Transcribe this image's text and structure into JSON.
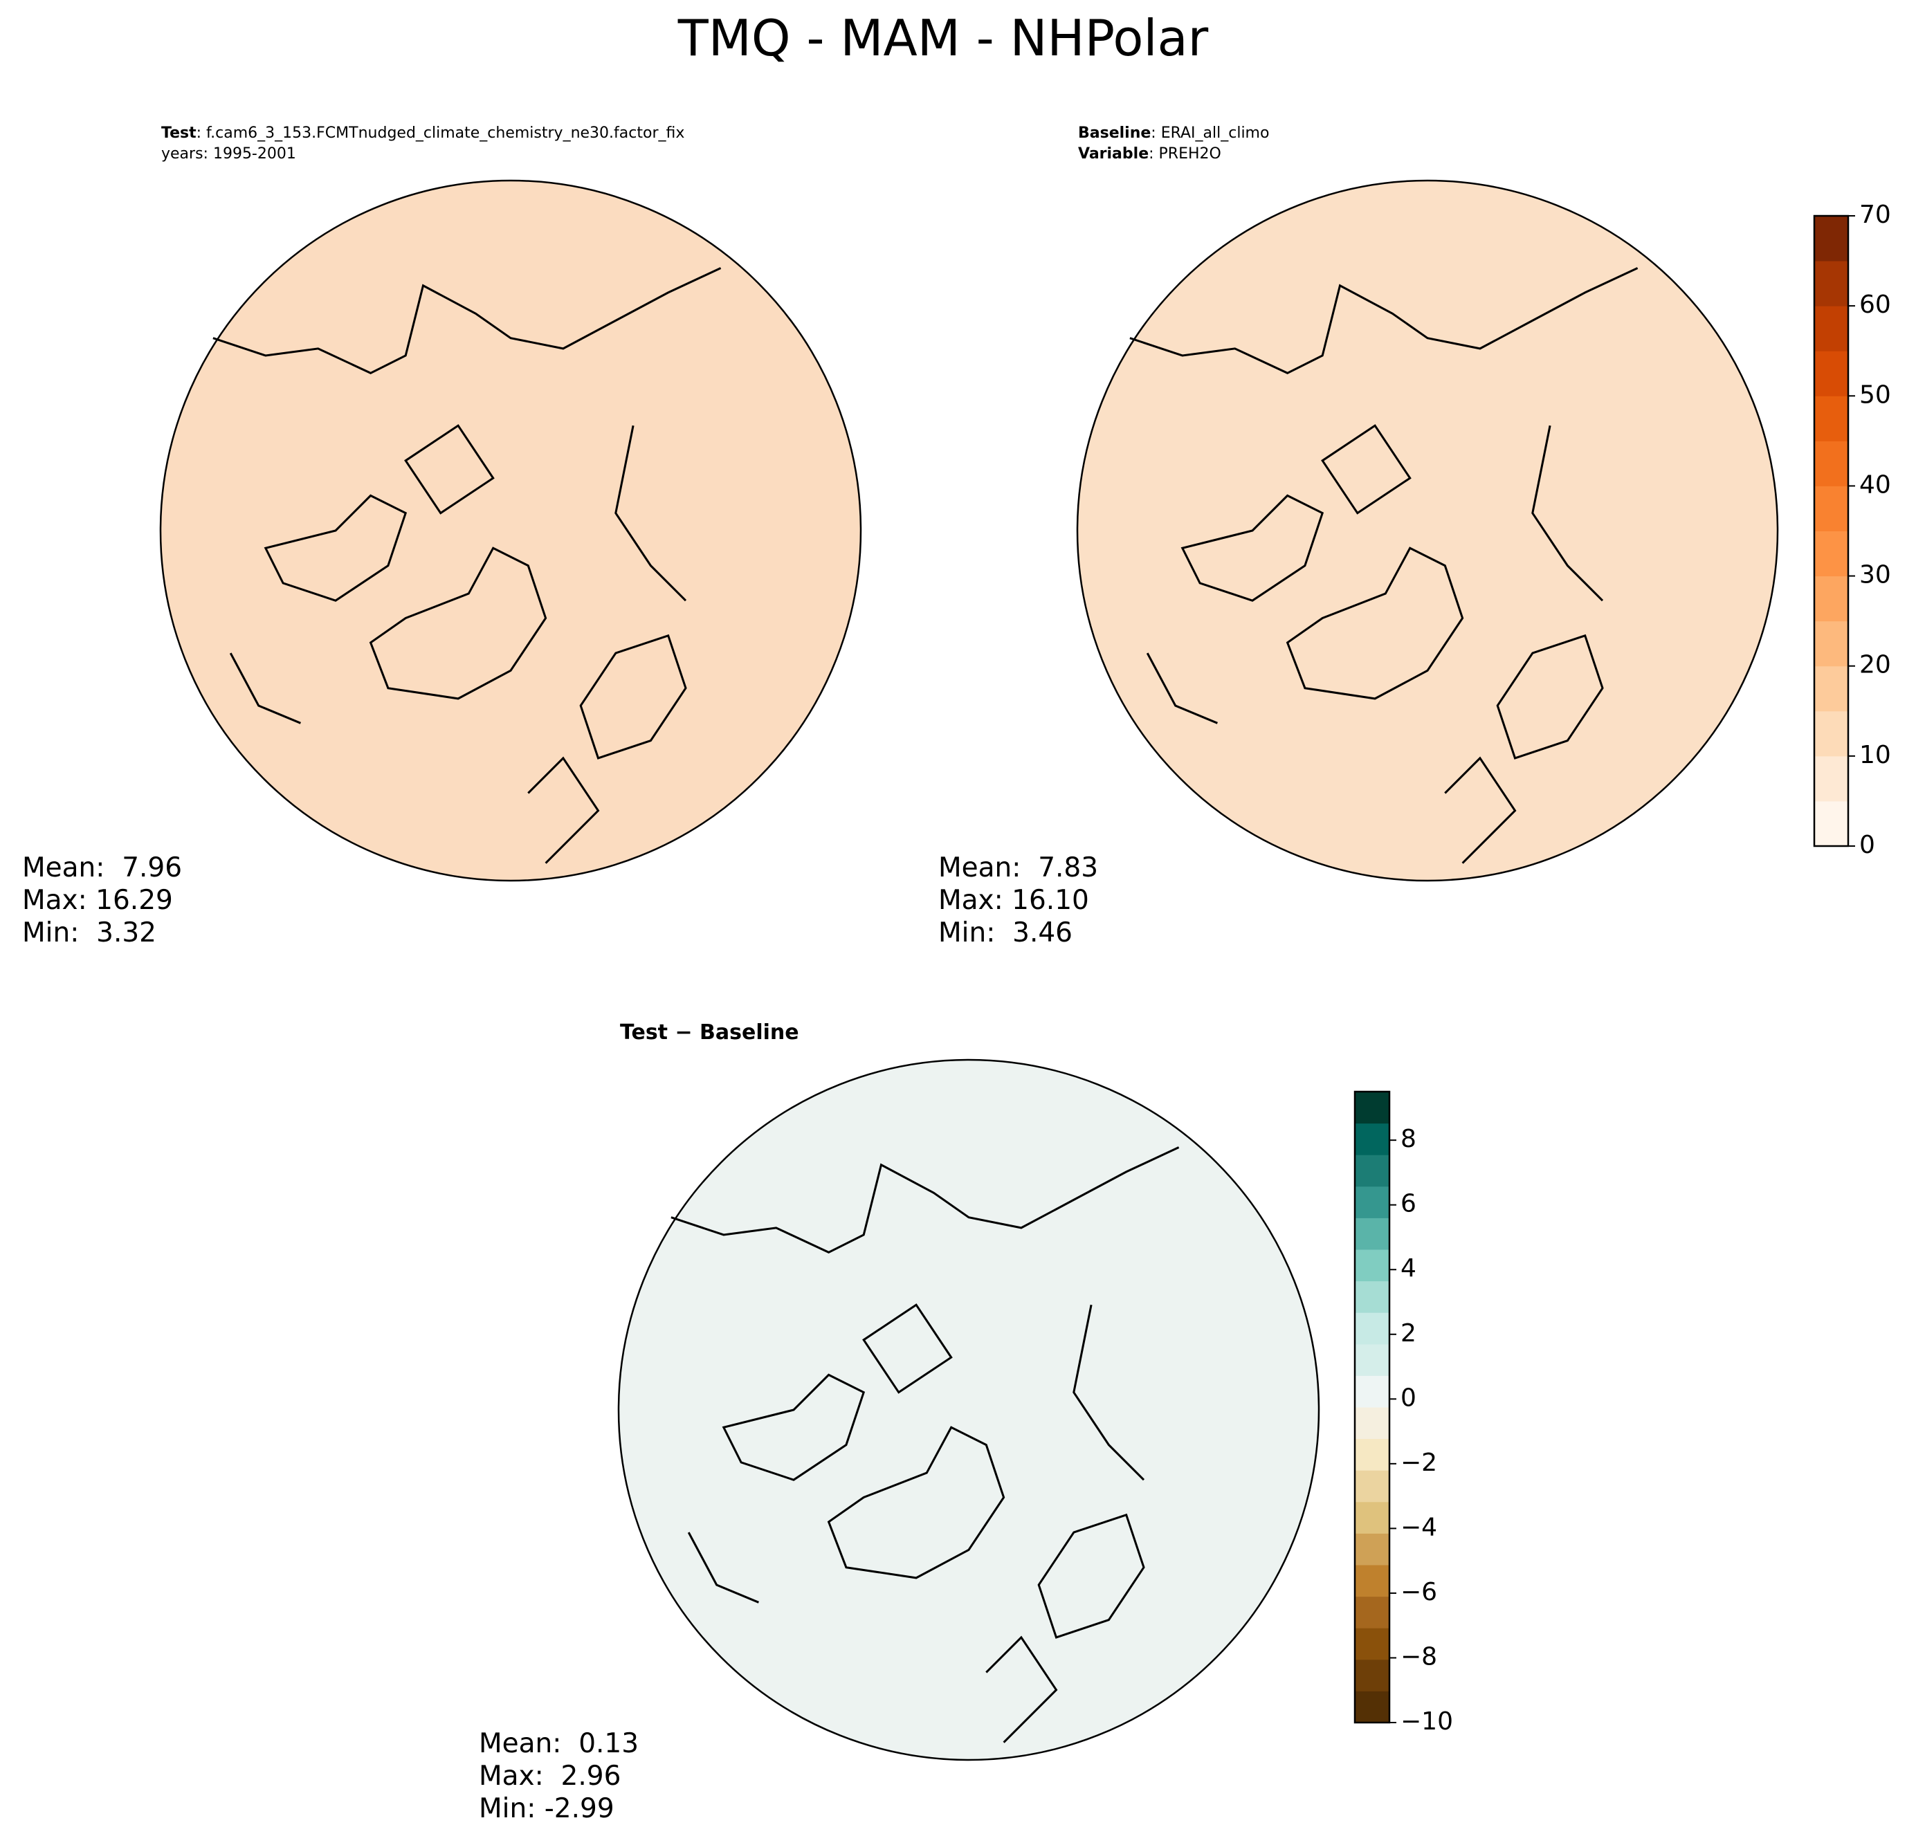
{
  "title": "TMQ - MAM - NHPolar",
  "chart_data": [
    {
      "type": "map",
      "color": "#fbdcc0",
      "header": [
        {
          "label": "Test",
          "text": ": f.cam6_3_153.FCMTnudged_climate_chemistry_ne30.factor_fix"
        },
        {
          "text": "years: 1995-2001"
        }
      ],
      "stats": [
        "Mean:  7.96",
        "Max: 16.29",
        "Min:  3.32"
      ]
    },
    {
      "type": "map",
      "color": "#fbe0c6",
      "header": [
        {
          "label": "Baseline",
          "text": ": ERAI_all_climo"
        },
        {
          "label": "Variable",
          "text": ": PREH2O"
        }
      ],
      "stats": [
        "Mean:  7.83",
        "Max: 16.10",
        "Min:  3.46"
      ],
      "colorbar": {
        "ylim": [
          0,
          70
        ],
        "yticks": [
          0,
          10,
          20,
          30,
          40,
          50,
          60,
          70
        ],
        "colors": [
          "#fff5eb",
          "#fee9d4",
          "#fddbb8",
          "#fdcb9b",
          "#fdb97d",
          "#fda660",
          "#fd9345",
          "#f98230",
          "#f2701d",
          "#e75e0d",
          "#d84c05",
          "#c24002",
          "#a63603",
          "#7f2704"
        ]
      }
    },
    {
      "type": "map",
      "color": "#edf3f1",
      "header": [
        {
          "label": "Test − Baseline"
        }
      ],
      "stats": [
        "Mean:  0.13",
        "Max:  2.96",
        "Min: -2.99"
      ],
      "colorbar": {
        "ylim": [
          -10,
          9.5
        ],
        "yticks": [
          {
            "value": -10,
            "label": "−10"
          },
          {
            "value": -8,
            "label": "−8"
          },
          {
            "value": -6,
            "label": "−6"
          },
          {
            "value": -4,
            "label": "−4"
          },
          {
            "value": -2,
            "label": "−2"
          },
          0,
          2,
          4,
          6,
          8
        ],
        "colors": [
          "#543005",
          "#6e3f08",
          "#8a510b",
          "#a5671e",
          "#bf812d",
          "#cfa156",
          "#dfc27d",
          "#ebd4a0",
          "#f6e8c3",
          "#f5efdf",
          "#eef5f4",
          "#d5eeea",
          "#c7eae5",
          "#a6ddd4",
          "#80cdc1",
          "#5ab4a9",
          "#35978f",
          "#1c7d75",
          "#01665e",
          "#003c30"
        ]
      }
    }
  ]
}
